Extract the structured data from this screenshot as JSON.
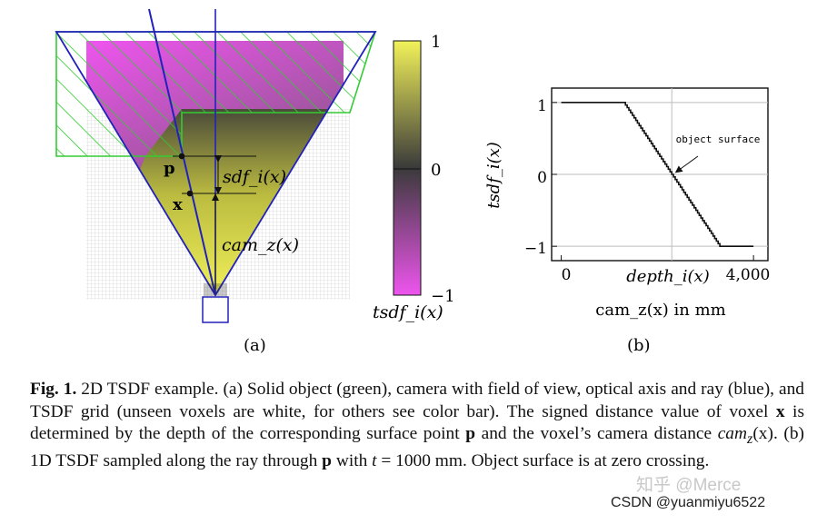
{
  "panel_a": {
    "label": "(a)",
    "colorbar": {
      "title": "tsdf_i(x)",
      "top_label": "1",
      "mid_label": "0",
      "bottom_label": "−1",
      "color_top": "#f2f25a",
      "color_mid": "#3a3a3a",
      "color_bottom": "#ee55ee"
    },
    "point_p": "p",
    "point_x": "x",
    "sdf_label": "sdf_i(x)",
    "cam_label": "cam_z(x)",
    "object_color": "#33cc33",
    "ray_color": "#2222bb"
  },
  "panel_b": {
    "label": "(b)",
    "ylabel": "tsdf_i(x)",
    "xlabel": "cam_z(x) in mm",
    "annotation": "object surface",
    "depth_tick": "depth_i(x)"
  },
  "chart_data": {
    "type": "line",
    "title": "",
    "xlabel": "cam_z(x) in mm",
    "ylabel": "tsdf_i(x)",
    "xlim": [
      -200,
      4300
    ],
    "ylim": [
      -1.2,
      1.2
    ],
    "x_ticks": [
      0,
      4000
    ],
    "x_tick_labels": [
      "0",
      "4,000"
    ],
    "y_ticks": [
      1,
      0,
      -1
    ],
    "y_tick_labels": [
      "1",
      "0",
      "−1"
    ],
    "grid": true,
    "series": [
      {
        "name": "tsdf",
        "x": [
          0,
          1300,
          2300,
          3300,
          4000
        ],
        "y": [
          1,
          1,
          0,
          -1,
          -1
        ]
      }
    ]
  },
  "caption": {
    "fig_label": "Fig. 1.",
    "t1": " 2D TSDF example. (a) Solid object (green), camera with field of view, optical axis and ray (blue), and TSDF grid (unseen voxels are white, for others see color bar). The signed distance value of voxel ",
    "x1": "x",
    "t2": " is determined by the depth of the corresponding surface point ",
    "p1": "p",
    "t3": " and the voxel’s camera distance ",
    "cam": "cam",
    "camsub": "z",
    "camx": "(x)",
    "t4": ". (b) 1D TSDF sampled along the ray through ",
    "p2": "p",
    "t5": " with ",
    "tvar": "t",
    "t6": " = 1000 mm. Object surface is at zero crossing."
  },
  "watermark": {
    "zhihu": "知乎 @Merce",
    "csdn": "CSDN @yuanmiyu6522"
  }
}
